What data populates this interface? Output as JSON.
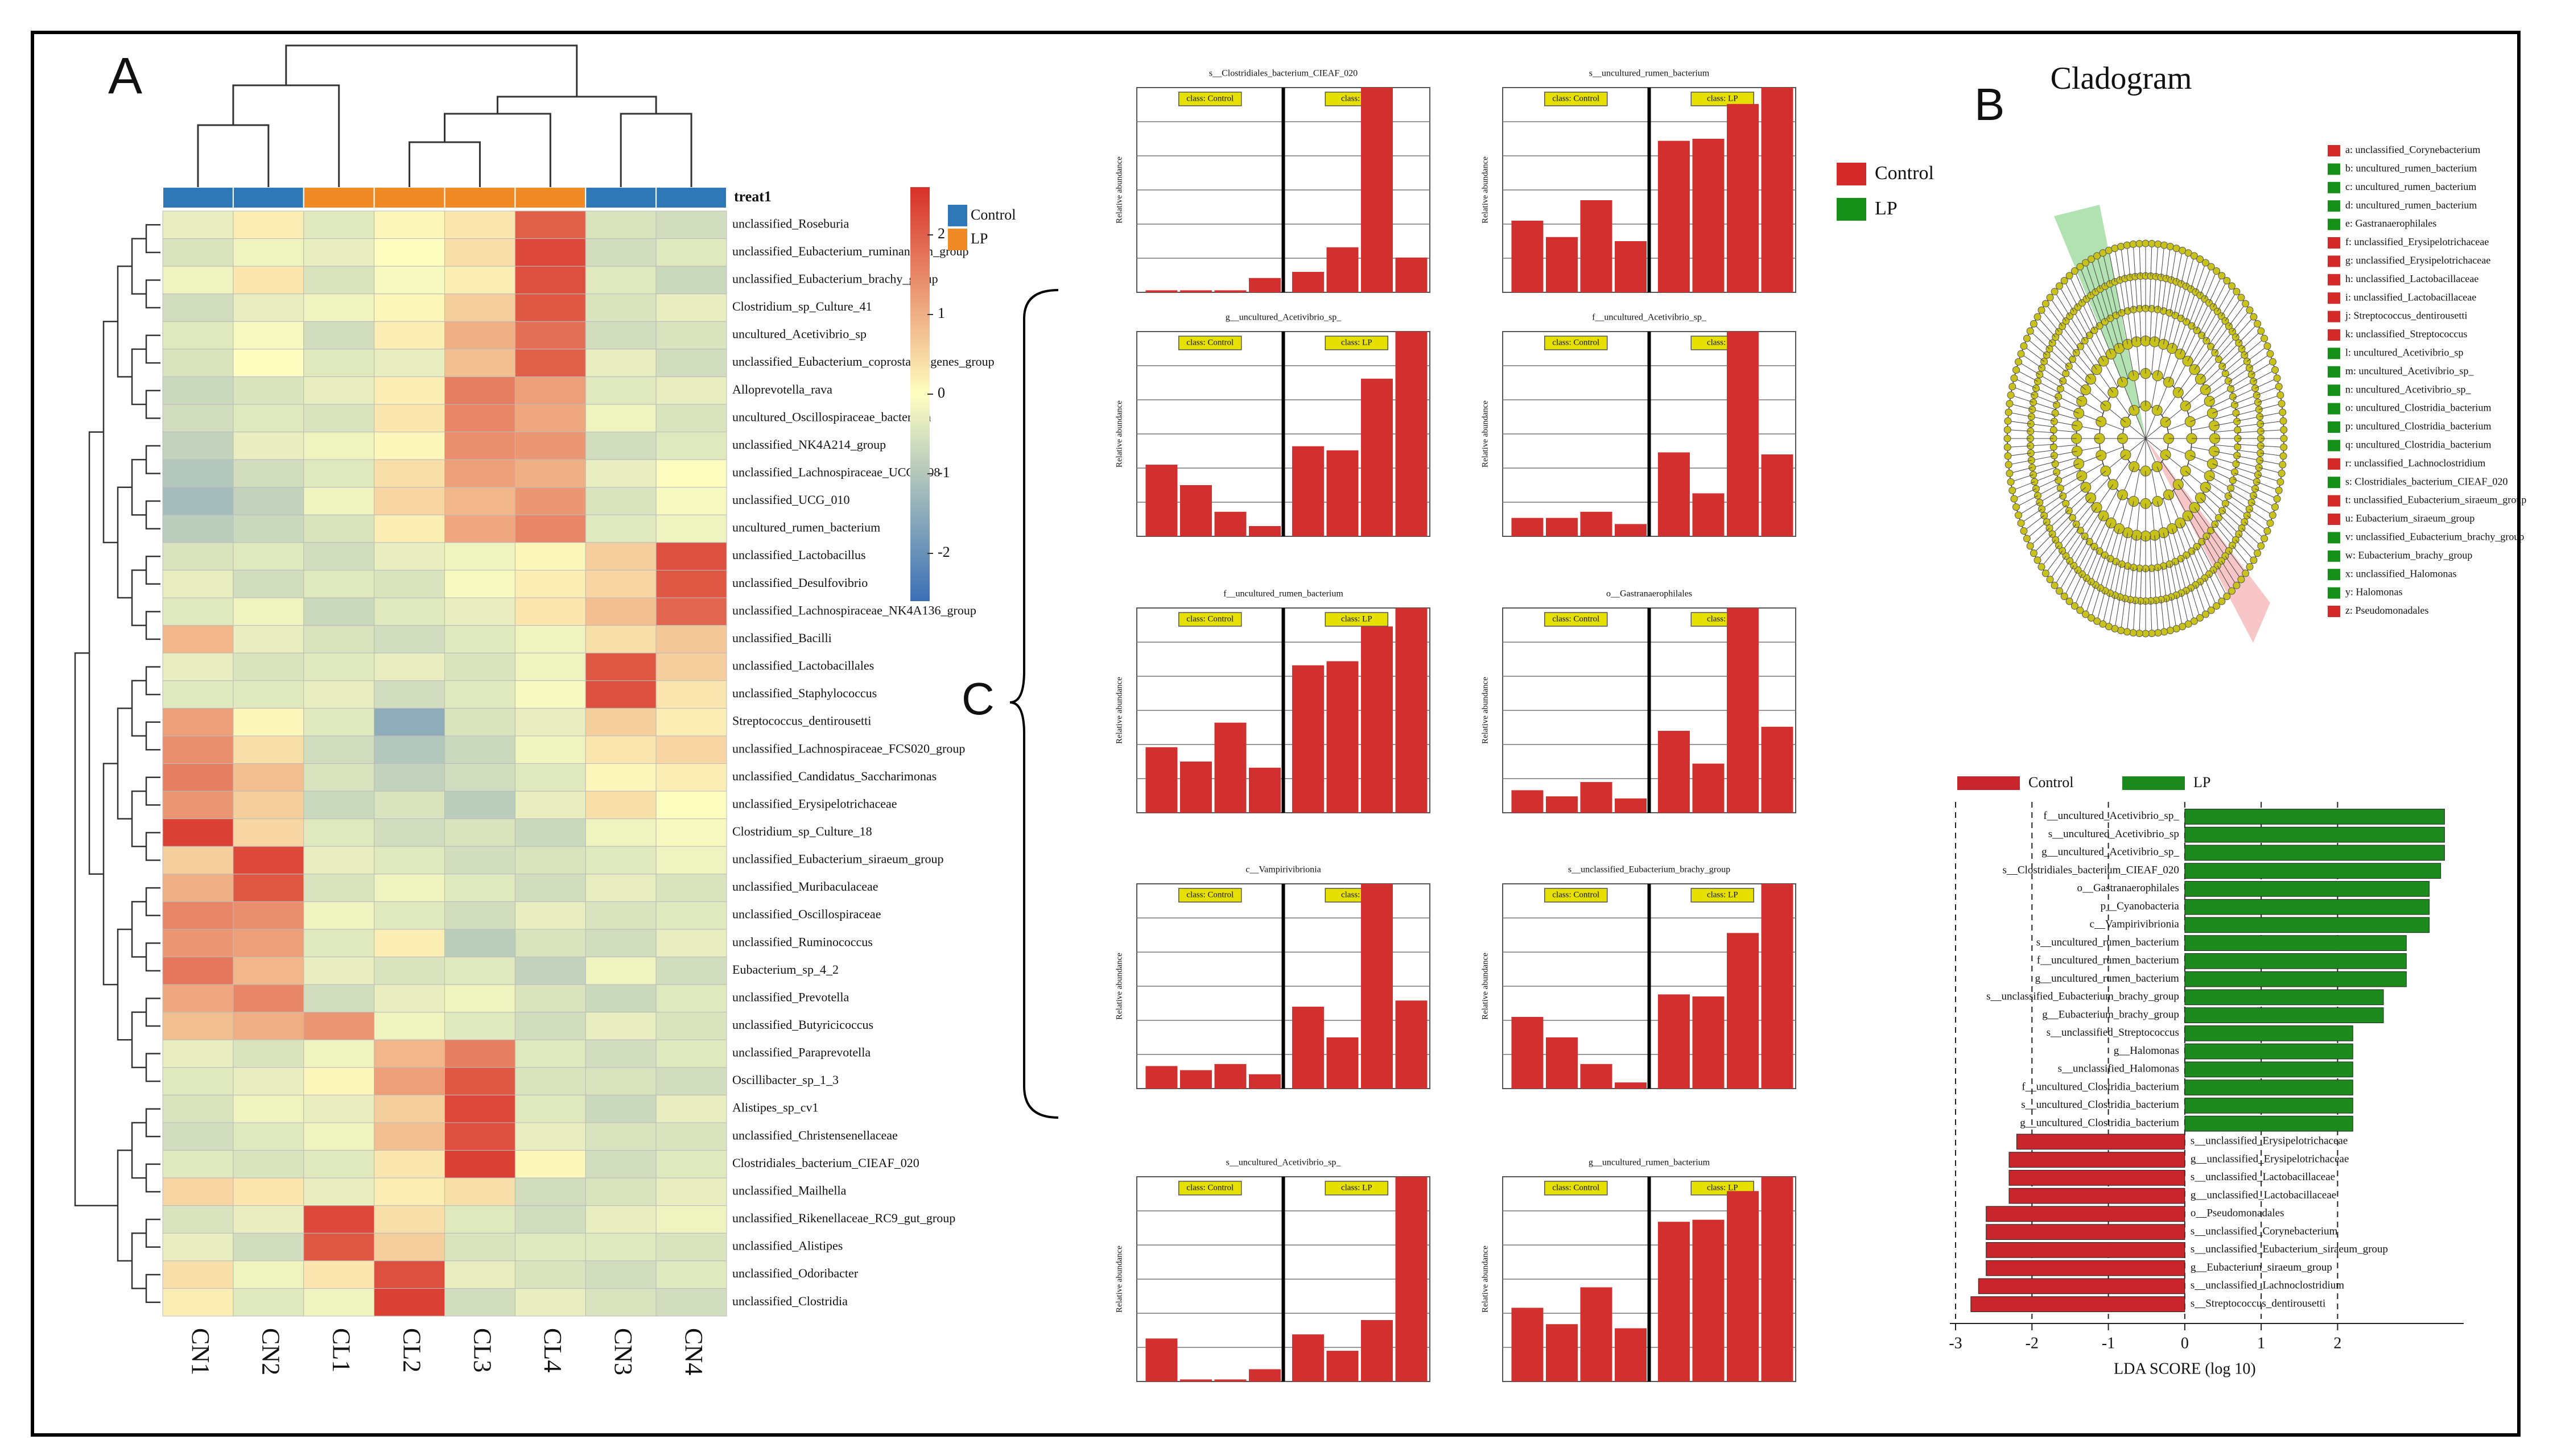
{
  "labels": [
    "A",
    "B",
    "C"
  ],
  "heatmap": {
    "legend_title": "treat1",
    "groups": [
      {
        "name": "Control",
        "color": "#2e78b7"
      },
      {
        "name": "LP",
        "color": "#f08a24"
      }
    ],
    "columns": [
      "CN1",
      "CN2",
      "CL1",
      "CL2",
      "CL3",
      "CL4",
      "CN3",
      "CN4"
    ],
    "column_groups": [
      0,
      0,
      1,
      1,
      1,
      1,
      0,
      0
    ],
    "rows": [
      "unclassified_Roseburia",
      "unclassified_Eubacterium_ruminantium_group",
      "unclassified_Eubacterium_brachy_group",
      "Clostridium_sp_Culture_41",
      "uncultured_Acetivibrio_sp",
      "unclassified_Eubacterium_coprostanoligenes_group",
      "Alloprevotella_rava",
      "uncultured_Oscillospiraceae_bacterium",
      "unclassified_NK4A214_group",
      "unclassified_Lachnospiraceae_UCG_008",
      "unclassified_UCG_010",
      "uncultured_rumen_bacterium",
      "unclassified_Lactobacillus",
      "unclassified_Desulfovibrio",
      "unclassified_Lachnospiraceae_NK4A136_group",
      "unclassified_Bacilli",
      "unclassified_Lactobacillales",
      "unclassified_Staphylococcus",
      "Streptococcus_dentirousetti",
      "unclassified_Lachnospiraceae_FCS020_group",
      "unclassified_Candidatus_Saccharimonas",
      "unclassified_Erysipelotrichaceae",
      "Clostridium_sp_Culture_18",
      "unclassified_Eubacterium_siraeum_group",
      "unclassified_Muribaculaceae",
      "unclassified_Oscillospiraceae",
      "unclassified_Ruminococcus",
      "Eubacterium_sp_4_2",
      "unclassified_Prevotella",
      "unclassified_Butyricicoccus",
      "unclassified_Paraprevotella",
      "Oscillibacter_sp_1_3",
      "Alistipes_sp_cv1",
      "unclassified_Christensenellaceae",
      "Clostridiales_bacterium_CIEAF_020",
      "unclassified_Mailhella",
      "unclassified_Rikenellaceae_RC9_gut_group",
      "unclassified_Alistipes",
      "unclassified_Odoribacter",
      "unclassified_Clostridia"
    ],
    "values": [
      [
        -0.3,
        0.2,
        -0.4,
        0.1,
        0.3,
        2.0,
        -0.5,
        -0.6
      ],
      [
        -0.5,
        -0.2,
        -0.3,
        0.0,
        0.4,
        2.3,
        -0.6,
        -0.4
      ],
      [
        -0.2,
        0.3,
        -0.5,
        -0.1,
        0.2,
        2.2,
        -0.4,
        -0.7
      ],
      [
        -0.6,
        -0.3,
        -0.2,
        0.1,
        0.6,
        2.1,
        -0.5,
        -0.3
      ],
      [
        -0.4,
        -0.1,
        -0.6,
        0.2,
        1.0,
        1.8,
        -0.6,
        -0.5
      ],
      [
        -0.5,
        0.0,
        -0.4,
        -0.3,
        0.8,
        2.0,
        -0.3,
        -0.6
      ],
      [
        -0.7,
        -0.5,
        -0.3,
        0.2,
        1.6,
        1.2,
        -0.4,
        -0.3
      ],
      [
        -0.6,
        -0.4,
        -0.5,
        0.3,
        1.5,
        1.1,
        -0.2,
        -0.5
      ],
      [
        -0.8,
        -0.3,
        -0.2,
        0.1,
        1.4,
        1.3,
        -0.6,
        -0.4
      ],
      [
        -1.0,
        -0.6,
        -0.4,
        0.4,
        1.2,
        1.0,
        -0.3,
        0.0
      ],
      [
        -1.2,
        -0.8,
        -0.2,
        0.5,
        0.9,
        1.3,
        -0.5,
        -0.1
      ],
      [
        -0.9,
        -0.7,
        -0.5,
        0.2,
        1.1,
        1.5,
        -0.4,
        -0.2
      ],
      [
        -0.5,
        -0.4,
        -0.6,
        -0.3,
        -0.2,
        0.1,
        0.6,
        2.2
      ],
      [
        -0.3,
        -0.6,
        -0.4,
        -0.5,
        -0.1,
        0.2,
        0.5,
        2.1
      ],
      [
        -0.4,
        -0.2,
        -0.7,
        -0.4,
        -0.3,
        0.3,
        0.8,
        1.9
      ],
      [
        0.9,
        -0.3,
        -0.5,
        -0.6,
        -0.4,
        -0.2,
        0.4,
        0.7
      ],
      [
        -0.3,
        -0.5,
        -0.4,
        -0.3,
        -0.5,
        -0.2,
        2.1,
        0.6
      ],
      [
        -0.4,
        -0.4,
        -0.3,
        -0.6,
        -0.4,
        -0.1,
        2.2,
        0.3
      ],
      [
        1.2,
        0.1,
        -0.4,
        -1.5,
        -0.5,
        -0.3,
        0.6,
        0.2
      ],
      [
        1.4,
        0.4,
        -0.6,
        -1.0,
        -0.7,
        -0.2,
        0.3,
        0.5
      ],
      [
        1.6,
        0.8,
        -0.5,
        -0.8,
        -0.6,
        -0.4,
        0.1,
        0.2
      ],
      [
        1.3,
        0.6,
        -0.7,
        -0.5,
        -0.9,
        -0.3,
        0.4,
        0.0
      ],
      [
        2.4,
        0.5,
        -0.4,
        -0.6,
        -0.5,
        -0.7,
        -0.2,
        -0.1
      ],
      [
        0.6,
        2.3,
        -0.3,
        -0.4,
        -0.6,
        -0.5,
        -0.4,
        -0.2
      ],
      [
        1.0,
        2.1,
        -0.5,
        -0.2,
        -0.4,
        -0.6,
        -0.3,
        -0.5
      ],
      [
        1.5,
        1.4,
        -0.2,
        -0.4,
        -0.6,
        -0.3,
        -0.5,
        -0.4
      ],
      [
        1.3,
        1.2,
        -0.4,
        0.2,
        -0.9,
        -0.5,
        -0.6,
        -0.3
      ],
      [
        1.7,
        0.9,
        -0.3,
        -0.5,
        -0.4,
        -0.8,
        -0.2,
        -0.6
      ],
      [
        1.1,
        1.5,
        -0.6,
        -0.3,
        -0.2,
        -0.5,
        -0.7,
        -0.4
      ],
      [
        0.8,
        1.0,
        1.3,
        -0.2,
        -0.4,
        -0.6,
        -0.3,
        -0.5
      ],
      [
        -0.3,
        -0.5,
        -0.2,
        0.9,
        1.6,
        -0.4,
        -0.6,
        -0.4
      ],
      [
        -0.4,
        -0.3,
        0.1,
        1.2,
        2.1,
        -0.5,
        -0.5,
        -0.6
      ],
      [
        -0.5,
        -0.2,
        -0.3,
        0.6,
        2.3,
        -0.4,
        -0.7,
        -0.3
      ],
      [
        -0.6,
        -0.4,
        -0.2,
        0.8,
        2.2,
        -0.3,
        -0.5,
        -0.5
      ],
      [
        -0.4,
        -0.5,
        -0.4,
        0.3,
        2.4,
        0.1,
        -0.6,
        -0.4
      ],
      [
        0.5,
        0.3,
        -0.3,
        0.2,
        0.4,
        -0.6,
        -0.5,
        -0.3
      ],
      [
        -0.5,
        -0.3,
        2.3,
        0.4,
        -0.4,
        -0.6,
        -0.3,
        -0.2
      ],
      [
        -0.3,
        -0.6,
        2.1,
        0.6,
        -0.5,
        -0.4,
        -0.4,
        -0.5
      ],
      [
        0.4,
        -0.2,
        0.3,
        2.2,
        -0.3,
        -0.5,
        -0.6,
        -0.4
      ],
      [
        0.2,
        -0.4,
        -0.2,
        2.4,
        -0.6,
        -0.3,
        -0.5,
        -0.6
      ]
    ],
    "colorbar": {
      "lim": [
        -2.6,
        2.6
      ],
      "ticks": [
        -2,
        -1,
        0,
        1,
        2
      ],
      "colors": [
        "#3b6fb6",
        "#fefec0",
        "#d73027"
      ]
    }
  },
  "bar_panels": {
    "legend": [
      {
        "name": "Control",
        "color": "#d42a2a"
      },
      {
        "name": "LP",
        "color": "#17901a"
      }
    ],
    "class_labels": [
      "class: Control",
      "class: LP"
    ],
    "ylabel": "Relative abundance",
    "ylim": [
      0,
      1
    ],
    "bar_color": "#d22f2f",
    "charts": [
      {
        "title": "s__Clostridiales_bacterium_CIEAF_020",
        "values": [
          0.01,
          0.01,
          0.01,
          0.07,
          0.1,
          0.22,
          1.0,
          0.17
        ]
      },
      {
        "title": "s__uncultured_rumen_bacterium",
        "values": [
          0.35,
          0.27,
          0.45,
          0.25,
          0.74,
          0.75,
          0.92,
          1.0
        ]
      },
      {
        "title": "g__uncultured_Acetivibrio_sp_",
        "values": [
          0.35,
          0.25,
          0.12,
          0.05,
          0.44,
          0.42,
          0.77,
          1.0
        ]
      },
      {
        "title": "f__uncultured_Acetivibrio_sp_",
        "values": [
          0.09,
          0.09,
          0.12,
          0.06,
          0.41,
          0.21,
          1.0,
          0.4
        ]
      },
      {
        "title": "f__uncultured_rumen_bacterium",
        "values": [
          0.32,
          0.25,
          0.44,
          0.22,
          0.72,
          0.74,
          0.91,
          1.0
        ]
      },
      {
        "title": "o__Gastranaerophilales",
        "values": [
          0.11,
          0.08,
          0.15,
          0.07,
          0.4,
          0.24,
          1.0,
          0.42
        ]
      },
      {
        "title": "c__Vampirivibrionia",
        "values": [
          0.11,
          0.09,
          0.12,
          0.07,
          0.4,
          0.25,
          1.0,
          0.43
        ]
      },
      {
        "title": "s__unclassified_Eubacterium_brachy_group",
        "values": [
          0.35,
          0.25,
          0.12,
          0.03,
          0.46,
          0.45,
          0.76,
          1.0
        ]
      },
      {
        "title": "s__uncultured_Acetivibrio_sp_",
        "values": [
          0.21,
          0.01,
          0.01,
          0.06,
          0.23,
          0.15,
          0.3,
          1.0
        ]
      },
      {
        "title": "g__uncultured_rumen_bacterium",
        "values": [
          0.36,
          0.28,
          0.46,
          0.26,
          0.78,
          0.79,
          0.93,
          1.0
        ]
      }
    ]
  },
  "cladogram": {
    "title": "Cladogram",
    "legend": [
      {
        "label": "a: unclassified_Corynebacterium",
        "color": "#d42a2a"
      },
      {
        "label": "b: uncultured_rumen_bacterium",
        "color": "#17901a"
      },
      {
        "label": "c: uncultured_rumen_bacterium",
        "color": "#17901a"
      },
      {
        "label": "d: uncultured_rumen_bacterium",
        "color": "#17901a"
      },
      {
        "label": "e: Gastranaerophilales",
        "color": "#17901a"
      },
      {
        "label": "f: unclassified_Erysipelotrichaceae",
        "color": "#d42a2a"
      },
      {
        "label": "g: unclassified_Erysipelotrichaceae",
        "color": "#d42a2a"
      },
      {
        "label": "h: unclassified_Lactobacillaceae",
        "color": "#d42a2a"
      },
      {
        "label": "i: unclassified_Lactobacillaceae",
        "color": "#d42a2a"
      },
      {
        "label": "j: Streptococcus_dentirousetti",
        "color": "#d42a2a"
      },
      {
        "label": "k: unclassified_Streptococcus",
        "color": "#d42a2a"
      },
      {
        "label": "l: uncultured_Acetivibrio_sp",
        "color": "#17901a"
      },
      {
        "label": "m: uncultured_Acetivibrio_sp_",
        "color": "#17901a"
      },
      {
        "label": "n: uncultured_Acetivibrio_sp_",
        "color": "#17901a"
      },
      {
        "label": "o: uncultured_Clostridia_bacterium",
        "color": "#17901a"
      },
      {
        "label": "p: uncultured_Clostridia_bacterium",
        "color": "#17901a"
      },
      {
        "label": "q: uncultured_Clostridia_bacterium",
        "color": "#17901a"
      },
      {
        "label": "r: unclassified_Lachnoclostridium",
        "color": "#d42a2a"
      },
      {
        "label": "s: Clostridiales_bacterium_CIEAF_020",
        "color": "#17901a"
      },
      {
        "label": "t: unclassified_Eubacterium_siraeum_group",
        "color": "#d42a2a"
      },
      {
        "label": "u: Eubacterium_siraeum_group",
        "color": "#d42a2a"
      },
      {
        "label": "v: unclassified_Eubacterium_brachy_group",
        "color": "#17901a"
      },
      {
        "label": "w: Eubacterium_brachy_group",
        "color": "#17901a"
      },
      {
        "label": "x: unclassified_Halomonas",
        "color": "#17901a"
      },
      {
        "label": "y: Halomonas",
        "color": "#17901a"
      },
      {
        "label": "z: Pseudomonadales",
        "color": "#d42a2a"
      }
    ]
  },
  "lda": {
    "type": "bar",
    "legend": [
      {
        "name": "Control",
        "color": "#c8262c"
      },
      {
        "name": "LP",
        "color": "#1d8a1d"
      }
    ],
    "features": [
      {
        "name": "f__uncultured_Acetivibrio_sp_",
        "value": 3.4
      },
      {
        "name": "s__uncultured_Acetivibrio_sp",
        "value": 3.4
      },
      {
        "name": "g__uncultured_Acetivibrio_sp_",
        "value": 3.4
      },
      {
        "name": "s__Clostridiales_bacterium_CIEAF_020",
        "value": 3.35
      },
      {
        "name": "o__Gastranaerophilales",
        "value": 3.2
      },
      {
        "name": "p__Cyanobacteria",
        "value": 3.2
      },
      {
        "name": "c__Vampirivibrionia",
        "value": 3.2
      },
      {
        "name": "s__uncultured_rumen_bacterium",
        "value": 2.9
      },
      {
        "name": "f__uncultured_rumen_bacterium",
        "value": 2.9
      },
      {
        "name": "g__uncultured_rumen_bacterium",
        "value": 2.9
      },
      {
        "name": "s__unclassified_Eubacterium_brachy_group",
        "value": 2.6
      },
      {
        "name": "g__Eubacterium_brachy_group",
        "value": 2.6
      },
      {
        "name": "s__unclassified_Streptococcus",
        "value": 2.2
      },
      {
        "name": "g__Halomonas",
        "value": 2.2
      },
      {
        "name": "s__unclassified_Halomonas",
        "value": 2.2
      },
      {
        "name": "f__uncultured_Clostridia_bacterium",
        "value": 2.2
      },
      {
        "name": "s__uncultured_Clostridia_bacterium",
        "value": 2.2
      },
      {
        "name": "g__uncultured_Clostridia_bacterium",
        "value": 2.2
      },
      {
        "name": "s__unclassified_Erysipelotrichaceae",
        "value": -2.2
      },
      {
        "name": "g__unclassified_Erysipelotrichaceae",
        "value": -2.3
      },
      {
        "name": "s__unclassified_Lactobacillaceae",
        "value": -2.3
      },
      {
        "name": "g__unclassified_Lactobacillaceae",
        "value": -2.3
      },
      {
        "name": "o__Pseudomonadales",
        "value": -2.6
      },
      {
        "name": "s__unclassified_Corynebacterium",
        "value": -2.6
      },
      {
        "name": "s__unclassified_Eubacterium_siraeum_group",
        "value": -2.6
      },
      {
        "name": "g__Eubacterium_siraeum_group",
        "value": -2.6
      },
      {
        "name": "s__unclassified_Lachnoclostridium",
        "value": -2.7
      },
      {
        "name": "s__Streptococcus_dentirousetti",
        "value": -2.8
      }
    ],
    "xlim": [
      -3.05,
      3.6
    ],
    "xticks": [
      -3,
      -2,
      -1,
      0,
      1,
      2
    ],
    "xlabel": "LDA SCORE (log 10)"
  }
}
